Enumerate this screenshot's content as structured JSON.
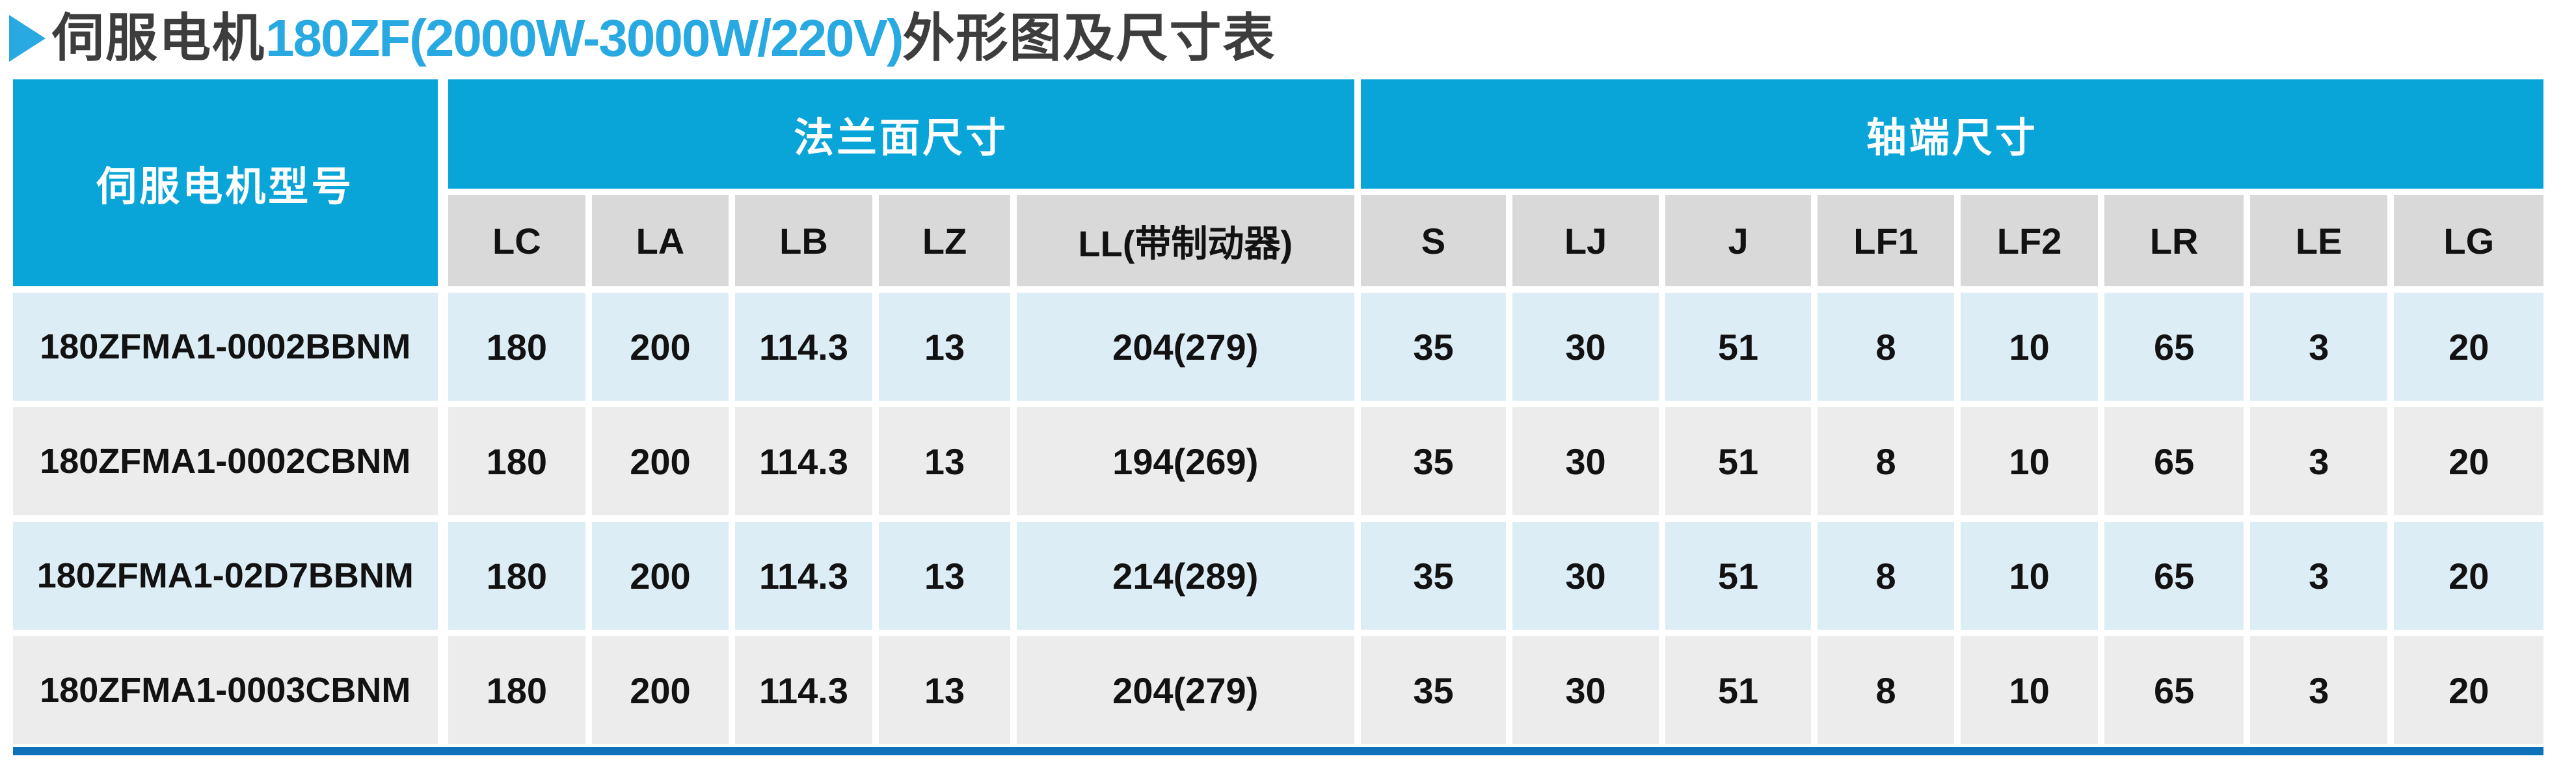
{
  "title": {
    "icon": "triangle-right-icon",
    "part1": "伺服电机",
    "part2": "180ZF(2000W-3000W/220V)",
    "part3": "外形图及尺寸表"
  },
  "colors": {
    "accent_blue": "#09a4d8",
    "title_blue": "#29a9e1",
    "bar_blue": "#0e72bb",
    "row_blue": "#dcedf5",
    "row_gray": "#ececec",
    "subheader_gray": "#d9d9d9",
    "text_dark": "#3d3d3d",
    "cell_text": "#121212"
  },
  "table": {
    "model_header": "伺服电机型号",
    "groups": [
      {
        "label": "法兰面尺寸",
        "columns": [
          "LC",
          "LA",
          "LB",
          "LZ",
          "LL(带制动器)"
        ]
      },
      {
        "label": "轴端尺寸",
        "columns": [
          "S",
          "LJ",
          "J",
          "LF1",
          "LF2",
          "LR",
          "LE",
          "LG"
        ]
      }
    ],
    "rows": [
      {
        "model": "180ZFMA1-0002BBNM",
        "values": [
          "180",
          "200",
          "114.3",
          "13",
          "204(279)",
          "35",
          "30",
          "51",
          "8",
          "10",
          "65",
          "3",
          "20"
        ]
      },
      {
        "model": "180ZFMA1-0002CBNM",
        "values": [
          "180",
          "200",
          "114.3",
          "13",
          "194(269)",
          "35",
          "30",
          "51",
          "8",
          "10",
          "65",
          "3",
          "20"
        ]
      },
      {
        "model": "180ZFMA1-02D7BBNM",
        "values": [
          "180",
          "200",
          "114.3",
          "13",
          "214(289)",
          "35",
          "30",
          "51",
          "8",
          "10",
          "65",
          "3",
          "20"
        ]
      },
      {
        "model": "180ZFMA1-0003CBNM",
        "values": [
          "180",
          "200",
          "114.3",
          "13",
          "204(279)",
          "35",
          "30",
          "51",
          "8",
          "10",
          "65",
          "3",
          "20"
        ]
      }
    ]
  }
}
